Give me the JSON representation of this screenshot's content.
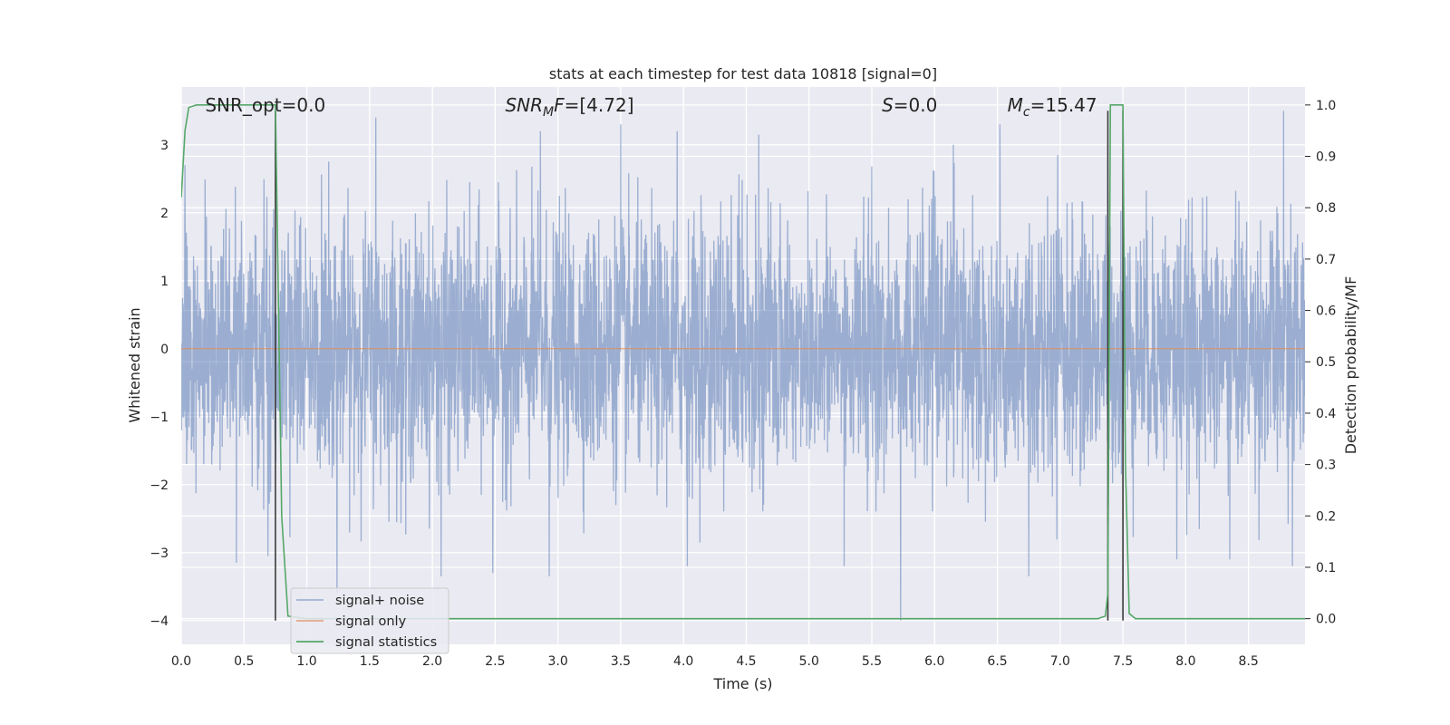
{
  "chart_data": {
    "type": "line",
    "title": "stats at each timestep for test data 10818 [signal=0]",
    "xlabel": "Time (s)",
    "ylabel": "Whitened strain",
    "y2label": "Detection probability/MF",
    "xlim": [
      0.0,
      8.95
    ],
    "ylim": [
      -4.35,
      3.85
    ],
    "y2lim": [
      -0.05,
      1.035
    ],
    "x_ticks": [
      0.0,
      0.5,
      1.0,
      1.5,
      2.0,
      2.5,
      3.0,
      3.5,
      4.0,
      4.5,
      5.0,
      5.5,
      6.0,
      6.5,
      7.0,
      7.5,
      8.0,
      8.5
    ],
    "x_tick_labels": [
      "0.0",
      "0.5",
      "1.0",
      "1.5",
      "2.0",
      "2.5",
      "3.0",
      "3.5",
      "4.0",
      "4.5",
      "5.0",
      "5.5",
      "6.0",
      "6.5",
      "7.0",
      "7.5",
      "8.0",
      "8.5"
    ],
    "y_ticks": [
      3,
      2,
      1,
      0,
      -1,
      -2,
      -3,
      -4
    ],
    "y_tick_labels": [
      "3",
      "2",
      "1",
      "0",
      "−1",
      "−2",
      "−3",
      "−4"
    ],
    "y2_ticks": [
      1.0,
      0.9,
      0.8,
      0.7,
      0.6,
      0.5,
      0.4,
      0.3,
      0.2,
      0.1,
      0.0
    ],
    "y2_tick_labels": [
      "1.0",
      "0.9",
      "0.8",
      "0.7",
      "0.6",
      "0.5",
      "0.4",
      "0.3",
      "0.2",
      "0.1",
      "0.0"
    ],
    "grid": true,
    "legend_position": "lower-left",
    "annotations": [
      {
        "plain": "SNR_opt=0.0",
        "x": 0.19
      },
      {
        "math": "SNR",
        "sub": "M",
        "rest": "F=[4.72]",
        "x": 2.58
      },
      {
        "math": "S",
        "rest": "=0.0",
        "x": 5.58
      },
      {
        "math": "M",
        "sub": "c",
        "rest": "=15.47",
        "x": 6.58
      }
    ],
    "series": [
      {
        "name": "signal+ noise",
        "color": "#4c72b0",
        "axis": "left",
        "summary": "whitened noise, approximately standard normal, envelope about -1.8 to 2.3 with spikes to 3.4 and -4.0",
        "std": 0.95,
        "spikes": [
          [
            0.03,
            2.7
          ],
          [
            0.44,
            -3.15
          ],
          [
            0.69,
            -3.05
          ],
          [
            1.24,
            -3.6
          ],
          [
            1.55,
            3.4
          ],
          [
            2.07,
            -3.35
          ],
          [
            2.48,
            -3.3
          ],
          [
            2.86,
            3.2
          ],
          [
            2.93,
            -3.35
          ],
          [
            3.5,
            3.3
          ],
          [
            3.95,
            3.2
          ],
          [
            4.03,
            -3.2
          ],
          [
            4.6,
            3.15
          ],
          [
            5.28,
            -3.2
          ],
          [
            5.73,
            -4.0
          ],
          [
            6.15,
            3.0
          ],
          [
            6.52,
            3.3
          ],
          [
            6.75,
            -3.35
          ],
          [
            7.38,
            3.0
          ],
          [
            7.93,
            -3.1
          ],
          [
            8.35,
            -3.1
          ],
          [
            8.85,
            -3.2
          ],
          [
            8.78,
            3.5
          ],
          [
            6.98,
            2.85
          ]
        ]
      },
      {
        "name": "signal only",
        "color": "#dd8452",
        "axis": "left",
        "x": [
          0.0,
          8.95
        ],
        "y": [
          0.0,
          0.0
        ]
      },
      {
        "name": "signal statistics",
        "color": "#55a868",
        "axis": "right",
        "x": [
          0.0,
          0.03,
          0.06,
          0.12,
          0.2,
          0.5,
          0.7,
          0.73,
          0.75,
          0.8,
          0.85,
          1.0,
          2.0,
          4.0,
          6.0,
          7.0,
          7.3,
          7.36,
          7.38,
          7.4,
          7.45,
          7.48,
          7.5,
          7.52,
          7.55,
          7.6,
          7.8,
          8.0,
          8.95
        ],
        "y": [
          0.82,
          0.95,
          0.995,
          1.0,
          1.0,
          1.0,
          1.0,
          1.0,
          1.0,
          0.2,
          0.005,
          0.0,
          0.0,
          0.0,
          0.0,
          0.0,
          0.0,
          0.005,
          0.05,
          1.0,
          1.0,
          1.0,
          1.0,
          0.3,
          0.01,
          0.0,
          0.0,
          0.0,
          0.0
        ]
      }
    ],
    "vlines": [
      {
        "x": 0.75,
        "from": -4.0,
        "to": 3.5,
        "color": "#3a3a3a"
      },
      {
        "x": 7.38,
        "from": -4.0,
        "to": 3.5,
        "color": "#3a3a3a"
      },
      {
        "x": 7.5,
        "from": -4.0,
        "to": 3.5,
        "color": "#3a3a3a"
      }
    ]
  }
}
